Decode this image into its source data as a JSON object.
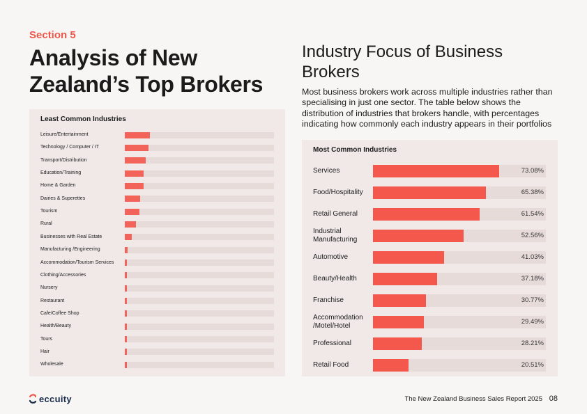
{
  "section_label": "Section 5",
  "main_title": "Analysis of New Zealand’s Top Brokers",
  "focus_title": "Industry Focus of Business Brokers",
  "focus_description": "Most business brokers work across multiple industries rather than specialising in just one sector. The table below shows the distribution of industries that brokers handle, with percentages indicating how commonly each industry appears in their portfolios",
  "footer": {
    "brand": "eccuity",
    "report": "The New Zealand Business Sales  Report 2025",
    "page": "08"
  },
  "colors": {
    "accent": "#f0554a",
    "bar": "#f4574c",
    "track": "#e7dbda",
    "panel": "#f0e9e8"
  },
  "chart_data": [
    {
      "type": "bar",
      "orientation": "horizontal",
      "title": "Least Common Industries",
      "categories": [
        "Leisure/Entertainment",
        "Technology / Computer / IT",
        "Transport/Distribution",
        "Education/Training",
        "Home & Garden",
        "Dairies & Superettes",
        "Tourism",
        "Rural",
        "Businesses with Real Estate",
        "Manufacturing /Engineering",
        "Accommodation/Tourism Services",
        "Clothing/Accessories",
        "Nursery",
        "Restaurant",
        "Cafe/Coffee Shop",
        "Health/Beauty",
        "Tours",
        "Hair",
        "Wholesale"
      ],
      "values": [
        16.67,
        16.03,
        14.1,
        12.82,
        12.82,
        10.26,
        9.62,
        7.69,
        4.49,
        1.92,
        0.64,
        0.64,
        0.64,
        0.64,
        0.64,
        0.64,
        0.64,
        0.64,
        0.64
      ],
      "xlim": [
        0,
        100
      ],
      "unit": "%"
    },
    {
      "type": "bar",
      "orientation": "horizontal",
      "title": "Most Common Industries",
      "categories": [
        "Services",
        "Food/Hospitality",
        "Retail General",
        "Industrial Manufacturing",
        "Automotive",
        "Beauty/Health",
        "Franchise",
        "Accommodation /Motel/Hotel",
        "Professional",
        "Retail Food"
      ],
      "values": [
        73.08,
        65.38,
        61.54,
        52.56,
        41.03,
        37.18,
        30.77,
        29.49,
        28.21,
        20.51
      ],
      "labels": [
        "73.08%",
        "65.38%",
        "61.54%",
        "52.56%",
        "41.03%",
        "37.18%",
        "30.77%",
        "29.49%",
        "28.21%",
        "20.51%"
      ],
      "xlim": [
        0,
        100
      ],
      "unit": "%"
    }
  ]
}
